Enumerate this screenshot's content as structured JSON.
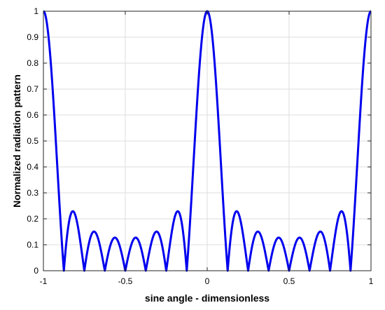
{
  "chart_data": {
    "type": "line",
    "title": "",
    "xlabel": "sine angle - dimensionless",
    "ylabel": "Normalized radiation pattern",
    "xlim": [
      -1,
      1
    ],
    "ylim": [
      0,
      1
    ],
    "grid": true,
    "x_ticks": [
      -1,
      -0.5,
      0,
      0.5,
      1
    ],
    "x_tick_labels": [
      "-1",
      "-0.5",
      "0",
      "0.5",
      "1"
    ],
    "y_ticks": [
      0,
      0.1,
      0.2,
      0.3,
      0.4,
      0.5,
      0.6,
      0.7,
      0.8,
      0.9,
      1
    ],
    "y_tick_labels": [
      "0",
      "0.1",
      "0.2",
      "0.3",
      "0.4",
      "0.5",
      "0.6",
      "0.7",
      "0.8",
      "0.9",
      "1"
    ],
    "series": [
      {
        "color": "#0000ee",
        "function": "|sin(8*pi*u)/(8*sin(pi*u))|",
        "sample_count": 1601,
        "key_points": {
          "x": [
            -1,
            -0.875,
            -0.8125,
            -0.75,
            -0.6875,
            -0.625,
            -0.5625,
            -0.5,
            -0.4375,
            -0.375,
            -0.3125,
            -0.25,
            -0.1875,
            -0.125,
            0,
            0.125,
            0.1875,
            0.25,
            0.3125,
            0.375,
            0.4375,
            0.5,
            0.5625,
            0.625,
            0.6875,
            0.75,
            0.8125,
            0.875,
            1
          ],
          "y": [
            1,
            0,
            0.225,
            0,
            0.15,
            0,
            0.126,
            0,
            0.126,
            0,
            0.15,
            0,
            0.225,
            0,
            1,
            0,
            0.225,
            0,
            0.15,
            0,
            0.126,
            0,
            0.126,
            0,
            0.15,
            0,
            0.225,
            0,
            1
          ]
        }
      }
    ]
  }
}
